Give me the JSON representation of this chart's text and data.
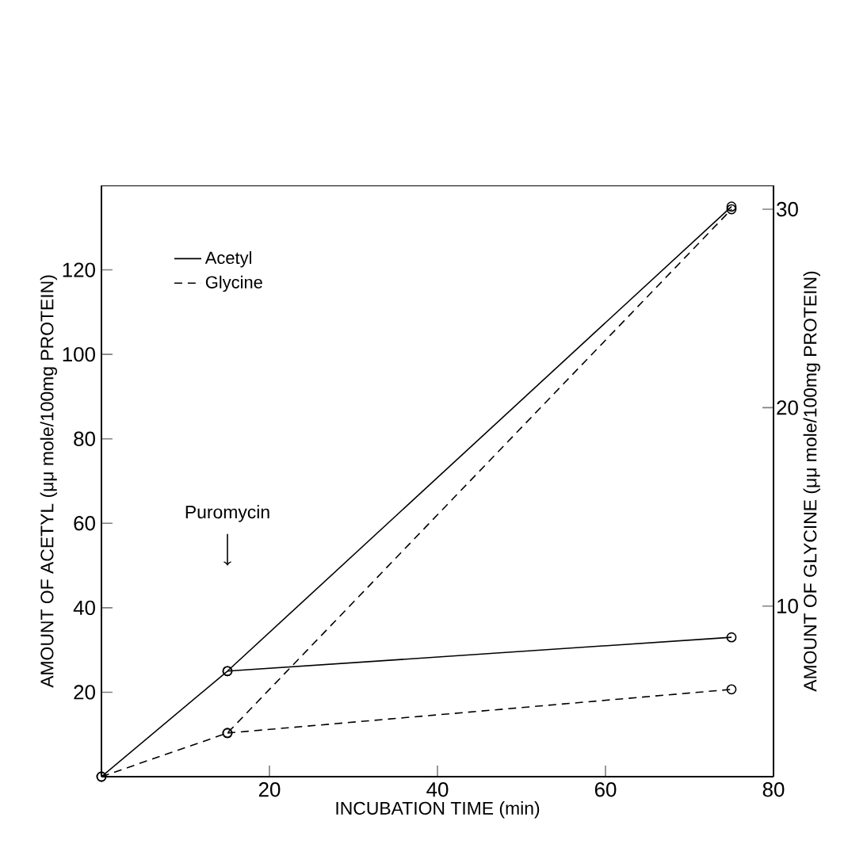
{
  "chart_data": {
    "type": "line",
    "xlabel": "INCUBATION TIME (min)",
    "ylabel": "AMOUNT OF ACETYL (μμ mole/100mg PROTEIN)",
    "y2label": "AMOUNT OF GLYCINE (μμ mole/100mg PROTEIN)",
    "xlim": [
      0,
      80
    ],
    "xticks": [
      20,
      40,
      60,
      80
    ],
    "ylim": [
      0,
      140
    ],
    "yticks": [
      20,
      40,
      60,
      80,
      100,
      120
    ],
    "y2lim": [
      1.4,
      31.2
    ],
    "y2ticks": [
      10,
      20,
      30
    ],
    "legend": "top left",
    "marker": "circle",
    "annotations": [
      {
        "text": "Puromycin",
        "x": 15,
        "y": 50
      }
    ],
    "series": [
      {
        "name": "Acetyl",
        "color": "#000000",
        "line_style": "solid",
        "x": [
          0,
          15,
          75
        ],
        "values": [
          0,
          25,
          135
        ]
      },
      {
        "color": "#000000",
        "line_style": "solid",
        "x": [
          15,
          75
        ],
        "values": [
          25,
          33
        ]
      },
      {
        "name": "Glycine",
        "color": "#000000",
        "line_style": "dashed",
        "axis": "y2",
        "x": [
          0,
          15,
          75
        ],
        "values": [
          1.4,
          3.6,
          30
        ]
      },
      {
        "color": "#000000",
        "line_style": "dashed",
        "axis": "y2",
        "x": [
          15,
          75
        ],
        "values": [
          3.6,
          5.8
        ]
      }
    ]
  }
}
